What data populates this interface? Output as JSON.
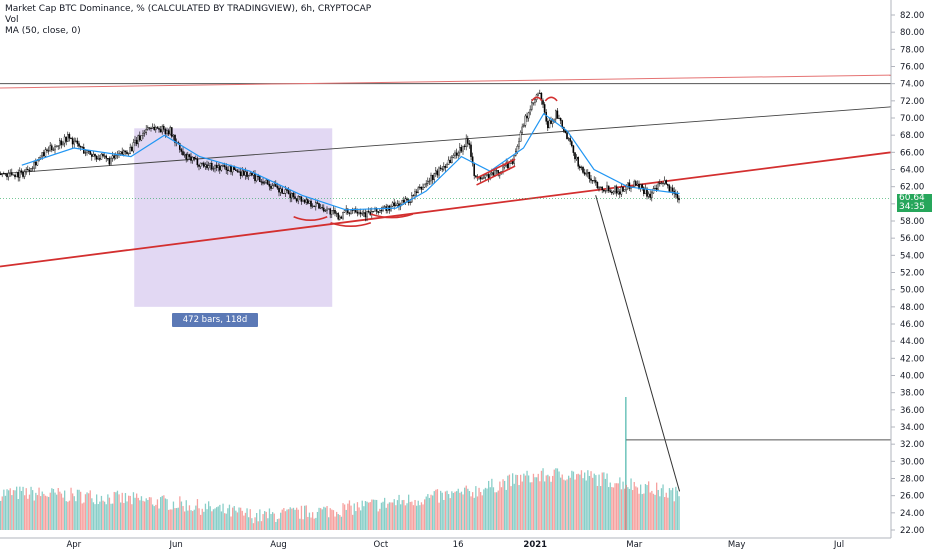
{
  "legend": {
    "title": "Market Cap BTC Dominance, % (CALCULATED BY TRADINGVIEW), 6h, CRYPTOCAP",
    "vol": "Vol",
    "ma": "MA (50, close, 0)"
  },
  "price_badge": {
    "value": "60.64",
    "countdown": "34:35",
    "color": "#26a65b"
  },
  "range_label": "472 bars, 118d",
  "colors": {
    "up": "#26a69a",
    "down": "#ef5350",
    "ma": "#2196f3",
    "trend_red": "#d32f2f",
    "trend_black": "#333333",
    "range_fill": "#d8cbef"
  },
  "chart_data": {
    "type": "candlestick",
    "title": "Market Cap BTC Dominance, % (CALCULATED BY TRADINGVIEW), 6h, CRYPTOCAP",
    "timeframe": "6h",
    "ylim": [
      22,
      83
    ],
    "y_ticks": [
      "82.00",
      "80.00",
      "78.00",
      "76.00",
      "74.00",
      "72.00",
      "70.00",
      "68.00",
      "66.00",
      "64.00",
      "62.00",
      "60.00",
      "58.00",
      "56.00",
      "54.00",
      "52.00",
      "50.00",
      "48.00",
      "46.00",
      "44.00",
      "42.00",
      "40.00",
      "38.00",
      "36.00",
      "34.00",
      "32.00",
      "30.00",
      "28.00",
      "26.00",
      "24.00",
      "22.00"
    ],
    "x_ticks": [
      "Apr",
      "Jun",
      "Aug",
      "Oct",
      "16",
      "2021",
      "Mar",
      "May",
      "Jul"
    ],
    "price_path": [
      {
        "date": "2020-03-01",
        "value": 63.5
      },
      {
        "date": "2020-03-15",
        "value": 66.0
      },
      {
        "date": "2020-03-28",
        "value": 67.8
      },
      {
        "date": "2020-04-08",
        "value": 66.0
      },
      {
        "date": "2020-04-22",
        "value": 65.0
      },
      {
        "date": "2020-05-05",
        "value": 66.5
      },
      {
        "date": "2020-05-15",
        "value": 69.0
      },
      {
        "date": "2020-05-28",
        "value": 68.5
      },
      {
        "date": "2020-06-05",
        "value": 65.5
      },
      {
        "date": "2020-06-18",
        "value": 64.5
      },
      {
        "date": "2020-07-05",
        "value": 64.0
      },
      {
        "date": "2020-07-22",
        "value": 62.8
      },
      {
        "date": "2020-08-01",
        "value": 61.5
      },
      {
        "date": "2020-08-15",
        "value": 60.5
      },
      {
        "date": "2020-08-28",
        "value": 59.5
      },
      {
        "date": "2020-09-05",
        "value": 58.5
      },
      {
        "date": "2020-09-15",
        "value": 59.5
      },
      {
        "date": "2020-09-22",
        "value": 58.8
      },
      {
        "date": "2020-10-05",
        "value": 59.5
      },
      {
        "date": "2020-10-18",
        "value": 60.5
      },
      {
        "date": "2020-10-28",
        "value": 62.5
      },
      {
        "date": "2020-11-05",
        "value": 64.0
      },
      {
        "date": "2020-11-15",
        "value": 66.0
      },
      {
        "date": "2020-11-22",
        "value": 67.5
      },
      {
        "date": "2020-11-26",
        "value": 62.8
      },
      {
        "date": "2020-12-08",
        "value": 63.5
      },
      {
        "date": "2020-12-18",
        "value": 65.0
      },
      {
        "date": "2020-12-26",
        "value": 70.0
      },
      {
        "date": "2021-01-03",
        "value": 73.0
      },
      {
        "date": "2021-01-08",
        "value": 69.0
      },
      {
        "date": "2021-01-13",
        "value": 70.5
      },
      {
        "date": "2021-01-20",
        "value": 67.5
      },
      {
        "date": "2021-01-28",
        "value": 64.0
      },
      {
        "date": "2021-02-08",
        "value": 62.0
      },
      {
        "date": "2021-02-20",
        "value": 61.5
      },
      {
        "date": "2021-03-01",
        "value": 62.5
      },
      {
        "date": "2021-03-10",
        "value": 61.0
      },
      {
        "date": "2021-03-18",
        "value": 62.5
      },
      {
        "date": "2021-03-28",
        "value": 60.64
      }
    ],
    "ma_path": [
      {
        "date": "2020-03-01",
        "value": 64.5
      },
      {
        "date": "2020-04-01",
        "value": 66.5
      },
      {
        "date": "2020-05-05",
        "value": 65.5
      },
      {
        "date": "2020-05-25",
        "value": 68.0
      },
      {
        "date": "2020-06-15",
        "value": 65.5
      },
      {
        "date": "2020-07-15",
        "value": 63.8
      },
      {
        "date": "2020-08-15",
        "value": 61.0
      },
      {
        "date": "2020-09-10",
        "value": 59.3
      },
      {
        "date": "2020-10-10",
        "value": 59.5
      },
      {
        "date": "2020-10-28",
        "value": 61.5
      },
      {
        "date": "2020-11-18",
        "value": 65.5
      },
      {
        "date": "2020-12-05",
        "value": 63.8
      },
      {
        "date": "2020-12-25",
        "value": 66.5
      },
      {
        "date": "2021-01-06",
        "value": 70.5
      },
      {
        "date": "2021-01-20",
        "value": 68.5
      },
      {
        "date": "2021-02-05",
        "value": 64.0
      },
      {
        "date": "2021-02-25",
        "value": 62.0
      },
      {
        "date": "2021-03-28",
        "value": 61.2
      }
    ],
    "volume_path": [
      {
        "date": "2020-03-01",
        "value": 26.2
      },
      {
        "date": "2020-04-15",
        "value": 25.8
      },
      {
        "date": "2020-06-01",
        "value": 25.0
      },
      {
        "date": "2020-07-20",
        "value": 23.5
      },
      {
        "date": "2020-09-01",
        "value": 24.2
      },
      {
        "date": "2020-10-15",
        "value": 25.3
      },
      {
        "date": "2020-11-20",
        "value": 26.2
      },
      {
        "date": "2020-12-25",
        "value": 28.0
      },
      {
        "date": "2021-01-20",
        "value": 28.5
      },
      {
        "date": "2021-02-20",
        "value": 27.5
      },
      {
        "date": "2021-03-28",
        "value": 26.0
      }
    ],
    "volume_spike": {
      "date": "2021-02-24",
      "value": 37.5
    },
    "annotations": {
      "red_support_line": [
        {
          "date": "2020-02-17",
          "value": 52.7
        },
        {
          "date": "2021-08-01",
          "value": 66.0
        }
      ],
      "black_upper_line": [
        {
          "date": "2020-02-17",
          "value": 63.5
        },
        {
          "date": "2021-08-01",
          "value": 71.3
        }
      ],
      "horizontal_resistance": [
        {
          "date": "2020-02-17",
          "value": 74.0
        },
        {
          "date": "2021-08-01",
          "value": 74.0
        }
      ],
      "red_resistance": [
        {
          "date": "2020-02-17",
          "value": 73.5
        },
        {
          "date": "2021-08-01",
          "value": 75.0
        }
      ],
      "projection_line": [
        {
          "date": "2021-02-06",
          "value": 61.0
        },
        {
          "date": "2021-03-28",
          "value": 26.5
        }
      ],
      "horizontal_low": [
        {
          "date": "2021-02-24",
          "value": 32.5
        },
        {
          "date": "2021-08-01",
          "value": 32.5
        }
      ],
      "date_range": {
        "start": "2020-05-07",
        "end": "2020-09-02",
        "high": 68.8,
        "low": 48.0
      }
    },
    "arcs": [
      {
        "date_start": "2020-08-10",
        "date_end": "2020-08-30",
        "value": 58.5,
        "dir": "down"
      },
      {
        "date_start": "2020-09-01",
        "date_end": "2020-09-25",
        "value": 57.8,
        "dir": "down"
      },
      {
        "date_start": "2020-09-25",
        "date_end": "2020-10-20",
        "value": 58.8,
        "dir": "down"
      },
      {
        "date_start": "2020-12-30",
        "date_end": "2021-01-05",
        "value": 72.0,
        "dir": "up"
      },
      {
        "date_start": "2021-01-07",
        "date_end": "2021-01-14",
        "value": 72.0,
        "dir": "up"
      }
    ],
    "last_price": 60.64
  }
}
